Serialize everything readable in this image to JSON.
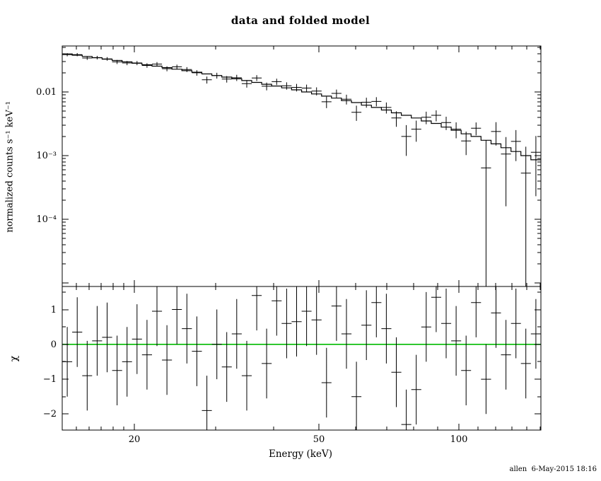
{
  "footer": {
    "text": "allen  6-May-2015 18:16"
  },
  "chart_data": {
    "type": "scatter",
    "subtype": "xspec-spectrum-with-folded-model-and-chi-residuals",
    "title": "data and folded model",
    "colors": {
      "data": "#000000",
      "model": "#000000",
      "zero_line": "#00bb00",
      "background": "#ffffff"
    },
    "x_axis": {
      "label": "Energy (keV)",
      "scale": "log",
      "range": [
        14.0,
        150.3
      ],
      "major_ticks": [
        20,
        50,
        100
      ],
      "minor_ticks": [
        15,
        16,
        17,
        18,
        19,
        30,
        40,
        60,
        70,
        80,
        90,
        110,
        120,
        130,
        140,
        150
      ]
    },
    "top_panel": {
      "ylabel": "normalized counts s⁻¹ keV⁻¹",
      "scale": "log",
      "range": [
        8.8e-06,
        0.0527
      ],
      "major_ticks": [
        {
          "value": 0.01,
          "label": "0.01"
        },
        {
          "value": 0.001,
          "label": "10⁻³"
        },
        {
          "value": 0.0001,
          "label": "10⁻⁴"
        },
        {
          "value": 1e-05,
          "label": ""
        }
      ]
    },
    "bottom_panel": {
      "ylabel": "χ",
      "scale": "linear",
      "range": [
        -2.46,
        1.66
      ],
      "major_ticks": [
        {
          "value": 1,
          "label": "1"
        },
        {
          "value": 0,
          "label": "0"
        },
        {
          "value": -1,
          "label": "−1"
        },
        {
          "value": -2,
          "label": "−2"
        }
      ],
      "minor_ticks": [
        1.5,
        0.5,
        -0.5,
        -1.5
      ],
      "zero_line_value": 0,
      "zero_line_color": "#00bb00"
    },
    "bins_format": [
      "e_lo_keV",
      "e_hi_keV",
      "rate",
      "rate_err",
      "model",
      "chi"
    ],
    "bins": [
      [
        14.0,
        14.71,
        0.0385,
        0.00223,
        0.0396,
        -0.5
      ],
      [
        14.71,
        15.46,
        0.0386,
        0.00222,
        0.0378,
        0.35
      ],
      [
        15.46,
        16.24,
        0.0341,
        0.00221,
        0.0361,
        -0.9
      ],
      [
        16.24,
        17.06,
        0.0346,
        0.00219,
        0.0344,
        0.1
      ],
      [
        17.06,
        17.93,
        0.0331,
        0.00217,
        0.0327,
        0.2
      ],
      [
        17.93,
        18.84,
        0.0296,
        0.00216,
        0.0312,
        -0.75
      ],
      [
        18.84,
        19.79,
        0.0285,
        0.00214,
        0.0296,
        -0.5
      ],
      [
        19.79,
        20.79,
        0.0285,
        0.00213,
        0.0282,
        0.15
      ],
      [
        20.79,
        21.85,
        0.0261,
        0.0021,
        0.0267,
        -0.3
      ],
      [
        21.85,
        22.96,
        0.0274,
        0.00208,
        0.0254,
        0.95
      ],
      [
        22.96,
        24.12,
        0.0232,
        0.00206,
        0.0241,
        -0.45
      ],
      [
        24.12,
        25.34,
        0.0248,
        0.00203,
        0.0228,
        1.0
      ],
      [
        25.34,
        26.63,
        0.0225,
        0.00201,
        0.0216,
        0.45
      ],
      [
        26.63,
        27.98,
        0.02,
        0.00198,
        0.0204,
        -0.2
      ],
      [
        27.98,
        29.4,
        0.0155,
        0.00194,
        0.0192,
        -1.9
      ],
      [
        29.4,
        30.89,
        0.0181,
        0.00191,
        0.0181,
        0.0
      ],
      [
        30.89,
        32.45,
        0.0159,
        0.00188,
        0.0171,
        -0.65
      ],
      [
        32.45,
        34.1,
        0.0167,
        0.00185,
        0.0161,
        0.3
      ],
      [
        34.1,
        35.83,
        0.0135,
        0.00181,
        0.0151,
        -0.9
      ],
      [
        35.83,
        37.64,
        0.0166,
        0.00176,
        0.0141,
        1.4
      ],
      [
        37.64,
        39.55,
        0.0123,
        0.00172,
        0.0132,
        -0.55
      ],
      [
        39.55,
        41.56,
        0.0145,
        0.00168,
        0.0124,
        1.25
      ],
      [
        41.56,
        43.66,
        0.0125,
        0.00164,
        0.0116,
        0.6
      ],
      [
        43.66,
        45.88,
        0.0118,
        0.00159,
        0.0108,
        0.65
      ],
      [
        45.88,
        48.2,
        0.0115,
        0.00154,
        0.01,
        0.95
      ],
      [
        48.2,
        50.65,
        0.0103,
        0.00149,
        0.0093,
        0.7
      ],
      [
        50.65,
        53.21,
        0.007,
        0.00144,
        0.0086,
        -1.1
      ],
      [
        53.21,
        55.91,
        0.0095,
        0.00139,
        0.008,
        1.1
      ],
      [
        55.91,
        58.75,
        0.0077,
        0.00134,
        0.0073,
        0.3
      ],
      [
        58.75,
        61.72,
        0.0048,
        0.00129,
        0.0068,
        -1.5
      ],
      [
        61.72,
        64.85,
        0.0069,
        0.00123,
        0.0062,
        0.55
      ],
      [
        64.85,
        68.14,
        0.0071,
        0.00117,
        0.0057,
        1.2
      ],
      [
        68.14,
        71.59,
        0.0057,
        0.00112,
        0.0052,
        0.45
      ],
      [
        71.59,
        75.22,
        0.0039,
        0.00106,
        0.0047,
        -0.8
      ],
      [
        75.22,
        79.03,
        0.002,
        0.00101,
        0.0043,
        -2.3
      ],
      [
        79.03,
        83.04,
        0.0026,
        0.00095,
        0.0039,
        -1.3
      ],
      [
        83.04,
        87.25,
        0.004,
        0.00089,
        0.0035,
        0.5
      ],
      [
        87.25,
        91.67,
        0.0043,
        0.00084,
        0.0032,
        1.35
      ],
      [
        91.67,
        96.31,
        0.0033,
        0.00078,
        0.0028,
        0.6
      ],
      [
        96.31,
        101.2,
        0.0026,
        0.00073,
        0.0025,
        0.1
      ],
      [
        101.2,
        106.3,
        0.0017,
        0.00068,
        0.0022,
        -0.75
      ],
      [
        106.3,
        111.7,
        0.0027,
        0.00062,
        0.002,
        1.2
      ],
      [
        111.7,
        117.4,
        0.00064,
        0.0011,
        0.00174,
        -1.0
      ],
      [
        117.4,
        123.3,
        0.00239,
        0.00095,
        0.00153,
        0.9
      ],
      [
        123.3,
        129.6,
        0.00106,
        0.0009,
        0.00133,
        -0.3
      ],
      [
        129.6,
        136.1,
        0.00167,
        0.00085,
        0.00116,
        0.6
      ],
      [
        136.1,
        143.0,
        0.00053,
        0.00085,
        0.001,
        -0.55
      ],
      [
        143.0,
        150.3,
        0.00113,
        0.0009,
        0.00086,
        0.3
      ]
    ]
  }
}
